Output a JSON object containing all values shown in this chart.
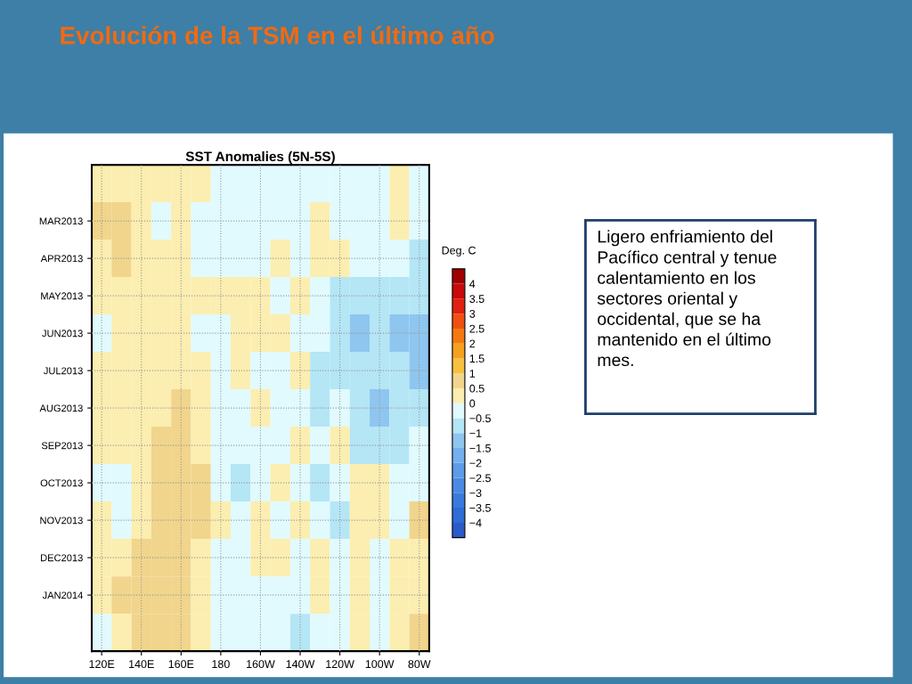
{
  "chart_data": [
    {
      "type": "other",
      "title": "Evolución de la TSM en el último año"
    },
    {
      "type": "heatmap",
      "title": "SST Anomalies (5N-5S)",
      "clabel": "Deg. C",
      "grid": true,
      "categories": [
        "120E",
        null,
        "140E",
        null,
        "160E",
        null,
        "180",
        null,
        "160W",
        null,
        "140W",
        null,
        "120W",
        null,
        "100W",
        null,
        "80W"
      ],
      "y_categories": [
        null,
        "MAR2013",
        "APR2013",
        "MAY2013",
        "JUN2013",
        "JUL2013",
        "AUG2013",
        "SEP2013",
        "OCT2013",
        "NOV2013",
        "DEC2013",
        "JAN2014",
        null
      ],
      "cells": [
        [
          0.25,
          0.25,
          0.25,
          0.25,
          0.25,
          0.25,
          -0.25,
          -0.25,
          -0.25,
          -0.25,
          -0.25,
          -0.25,
          -0.25,
          -0.25,
          -0.25,
          0.25,
          -0.25
        ],
        [
          0.75,
          0.75,
          0.25,
          -0.25,
          0.25,
          -0.25,
          -0.25,
          -0.25,
          -0.25,
          -0.25,
          -0.25,
          0.25,
          -0.25,
          -0.25,
          -0.25,
          0.25,
          -0.25
        ],
        [
          0.25,
          0.75,
          0.25,
          0.25,
          0.25,
          -0.25,
          -0.25,
          -0.25,
          -0.25,
          0.25,
          -0.25,
          0.25,
          0.25,
          -0.25,
          -0.25,
          -0.25,
          -0.75
        ],
        [
          0.25,
          0.25,
          0.25,
          0.25,
          0.25,
          0.25,
          0.25,
          0.25,
          0.25,
          -0.25,
          0.25,
          -0.25,
          -0.75,
          -0.75,
          -0.75,
          -0.75,
          -0.75
        ],
        [
          -0.25,
          0.25,
          0.25,
          0.25,
          0.25,
          -0.25,
          -0.25,
          0.25,
          0.25,
          0.25,
          -0.25,
          -0.25,
          -0.75,
          -1.25,
          -0.75,
          -1.25,
          -1.25
        ],
        [
          0.25,
          0.25,
          0.25,
          0.25,
          0.25,
          0.25,
          -0.25,
          0.25,
          -0.25,
          -0.25,
          0.25,
          -0.75,
          -0.75,
          -0.75,
          -0.75,
          -0.75,
          -1.25
        ],
        [
          0.25,
          0.25,
          0.25,
          0.25,
          0.75,
          0.25,
          -0.25,
          -0.25,
          0.25,
          -0.25,
          -0.25,
          -0.75,
          -0.25,
          -0.75,
          -1.25,
          -0.75,
          -0.75
        ],
        [
          0.25,
          0.25,
          0.25,
          0.75,
          0.75,
          0.25,
          -0.25,
          -0.25,
          -0.25,
          -0.25,
          0.25,
          -0.25,
          0.25,
          -0.75,
          -0.75,
          -0.75,
          -0.25
        ],
        [
          -0.25,
          -0.25,
          0.25,
          0.75,
          0.75,
          0.75,
          -0.25,
          -0.75,
          -0.25,
          0.25,
          -0.25,
          -0.75,
          -0.25,
          0.25,
          0.25,
          -0.25,
          -0.25
        ],
        [
          0.25,
          -0.25,
          0.25,
          0.75,
          0.75,
          0.75,
          0.25,
          -0.25,
          0.25,
          -0.25,
          0.25,
          -0.25,
          -0.75,
          0.25,
          0.25,
          -0.25,
          0.75
        ],
        [
          0.25,
          0.25,
          0.75,
          0.75,
          0.75,
          0.25,
          -0.25,
          -0.25,
          0.25,
          0.25,
          -0.25,
          0.25,
          -0.25,
          0.25,
          -0.25,
          0.25,
          0.25
        ],
        [
          0.25,
          0.75,
          0.75,
          0.75,
          0.75,
          0.25,
          -0.25,
          -0.25,
          -0.25,
          -0.25,
          -0.25,
          0.25,
          -0.25,
          0.25,
          -0.25,
          0.25,
          0.25
        ],
        [
          -0.25,
          0.25,
          0.75,
          0.75,
          0.75,
          0.25,
          -0.25,
          -0.25,
          -0.25,
          -0.25,
          -0.75,
          -0.25,
          -0.25,
          0.25,
          -0.25,
          0.25,
          0.75
        ]
      ],
      "clim": [
        -4.5,
        4.5
      ],
      "colors": [
        "#2a5cc8",
        "#2e6cd6",
        "#3a7ade",
        "#4a8ae4",
        "#5c9ce8",
        "#74b0ee",
        "#8ec6f0",
        "#b4e6f5",
        "#e1fafe",
        "#fbeeb0",
        "#f1d58c",
        "#f8c040",
        "#f6a020",
        "#f47a10",
        "#f05010",
        "#e02010",
        "#c80a0a",
        "#a00000"
      ],
      "cticks": [
        {
          "value": -4,
          "label": "−4"
        },
        {
          "value": -3.5,
          "label": "−3.5"
        },
        {
          "value": -3,
          "label": "−3"
        },
        {
          "value": -2.5,
          "label": "−2.5"
        },
        {
          "value": -2,
          "label": "−2"
        },
        {
          "value": -1.5,
          "label": "−1.5"
        },
        {
          "value": -1,
          "label": "−1"
        },
        {
          "value": -0.5,
          "label": "−0.5"
        },
        0,
        0.5,
        1,
        1.5,
        2,
        2.5,
        3,
        3.5,
        4
      ]
    },
    {
      "type": "other",
      "annotations": [
        "Ligero enfriamiento del Pacífico central y tenue calentamiento en los sectores oriental y occidental, que se ha mantenido en el último mes."
      ]
    }
  ]
}
